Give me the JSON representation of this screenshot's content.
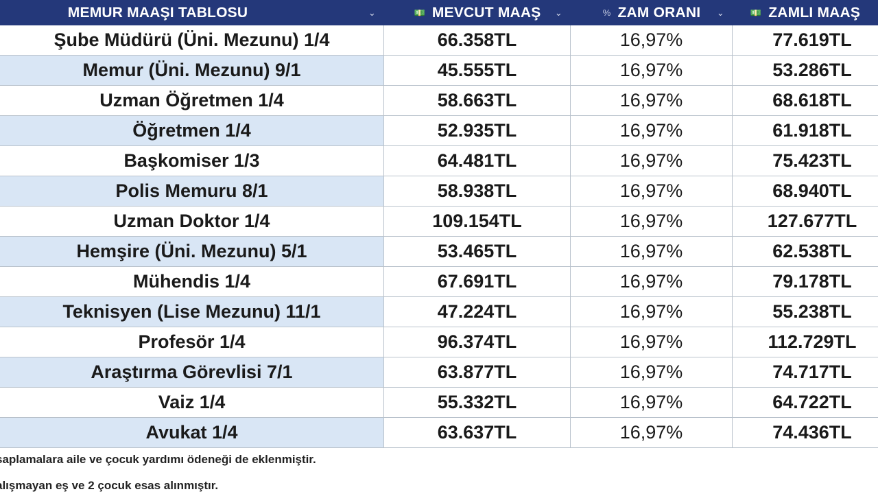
{
  "table": {
    "headers": {
      "name": "MEMUR MAAŞI TABLOSU",
      "current": "MEVCUT MAAŞ",
      "rate": "ZAM ORANI",
      "new": "ZAMLI MAAŞ"
    },
    "header_icons": {
      "sort": "chevron-down-icon",
      "current_type": "currency-icon",
      "rate_type": "percent-icon",
      "new_type": "currency-icon"
    },
    "rows": [
      {
        "name": "Şube Müdürü (Üni. Mezunu) 1/4",
        "current": "66.358TL",
        "rate": "16,97%",
        "new": "77.619TL"
      },
      {
        "name": "Memur (Üni. Mezunu) 9/1",
        "current": "45.555TL",
        "rate": "16,97%",
        "new": "53.286TL"
      },
      {
        "name": "Uzman Öğretmen 1/4",
        "current": "58.663TL",
        "rate": "16,97%",
        "new": "68.618TL"
      },
      {
        "name": "Öğretmen 1/4",
        "current": "52.935TL",
        "rate": "16,97%",
        "new": "61.918TL"
      },
      {
        "name": "Başkomiser 1/3",
        "current": "64.481TL",
        "rate": "16,97%",
        "new": "75.423TL"
      },
      {
        "name": "Polis Memuru 8/1",
        "current": "58.938TL",
        "rate": "16,97%",
        "new": "68.940TL"
      },
      {
        "name": "Uzman Doktor 1/4",
        "current": "109.154TL",
        "rate": "16,97%",
        "new": "127.677TL"
      },
      {
        "name": "Hemşire (Üni. Mezunu) 5/1",
        "current": "53.465TL",
        "rate": "16,97%",
        "new": "62.538TL"
      },
      {
        "name": "Mühendis 1/4",
        "current": "67.691TL",
        "rate": "16,97%",
        "new": "79.178TL"
      },
      {
        "name": "Teknisyen (Lise Mezunu) 11/1",
        "current": "47.224TL",
        "rate": "16,97%",
        "new": "55.238TL"
      },
      {
        "name": "Profesör 1/4",
        "current": "96.374TL",
        "rate": "16,97%",
        "new": "112.729TL"
      },
      {
        "name": "Araştırma Görevlisi 7/1",
        "current": "63.877TL",
        "rate": "16,97%",
        "new": "74.717TL"
      },
      {
        "name": "Vaiz 1/4",
        "current": "55.332TL",
        "rate": "16,97%",
        "new": "64.722TL"
      },
      {
        "name": "Avukat 1/4",
        "current": "63.637TL",
        "rate": "16,97%",
        "new": "74.436TL"
      }
    ]
  },
  "notes": [
    "saplamalara aile ve çocuk yardımı ödeneği de eklenmiştir.",
    "alışmayan eş ve 2 çocuk esas alınmıştır."
  ],
  "colors": {
    "header_bg": "#24387a",
    "alt_row_bg": "#d9e6f5",
    "grid_line": "#b9c2cc"
  }
}
